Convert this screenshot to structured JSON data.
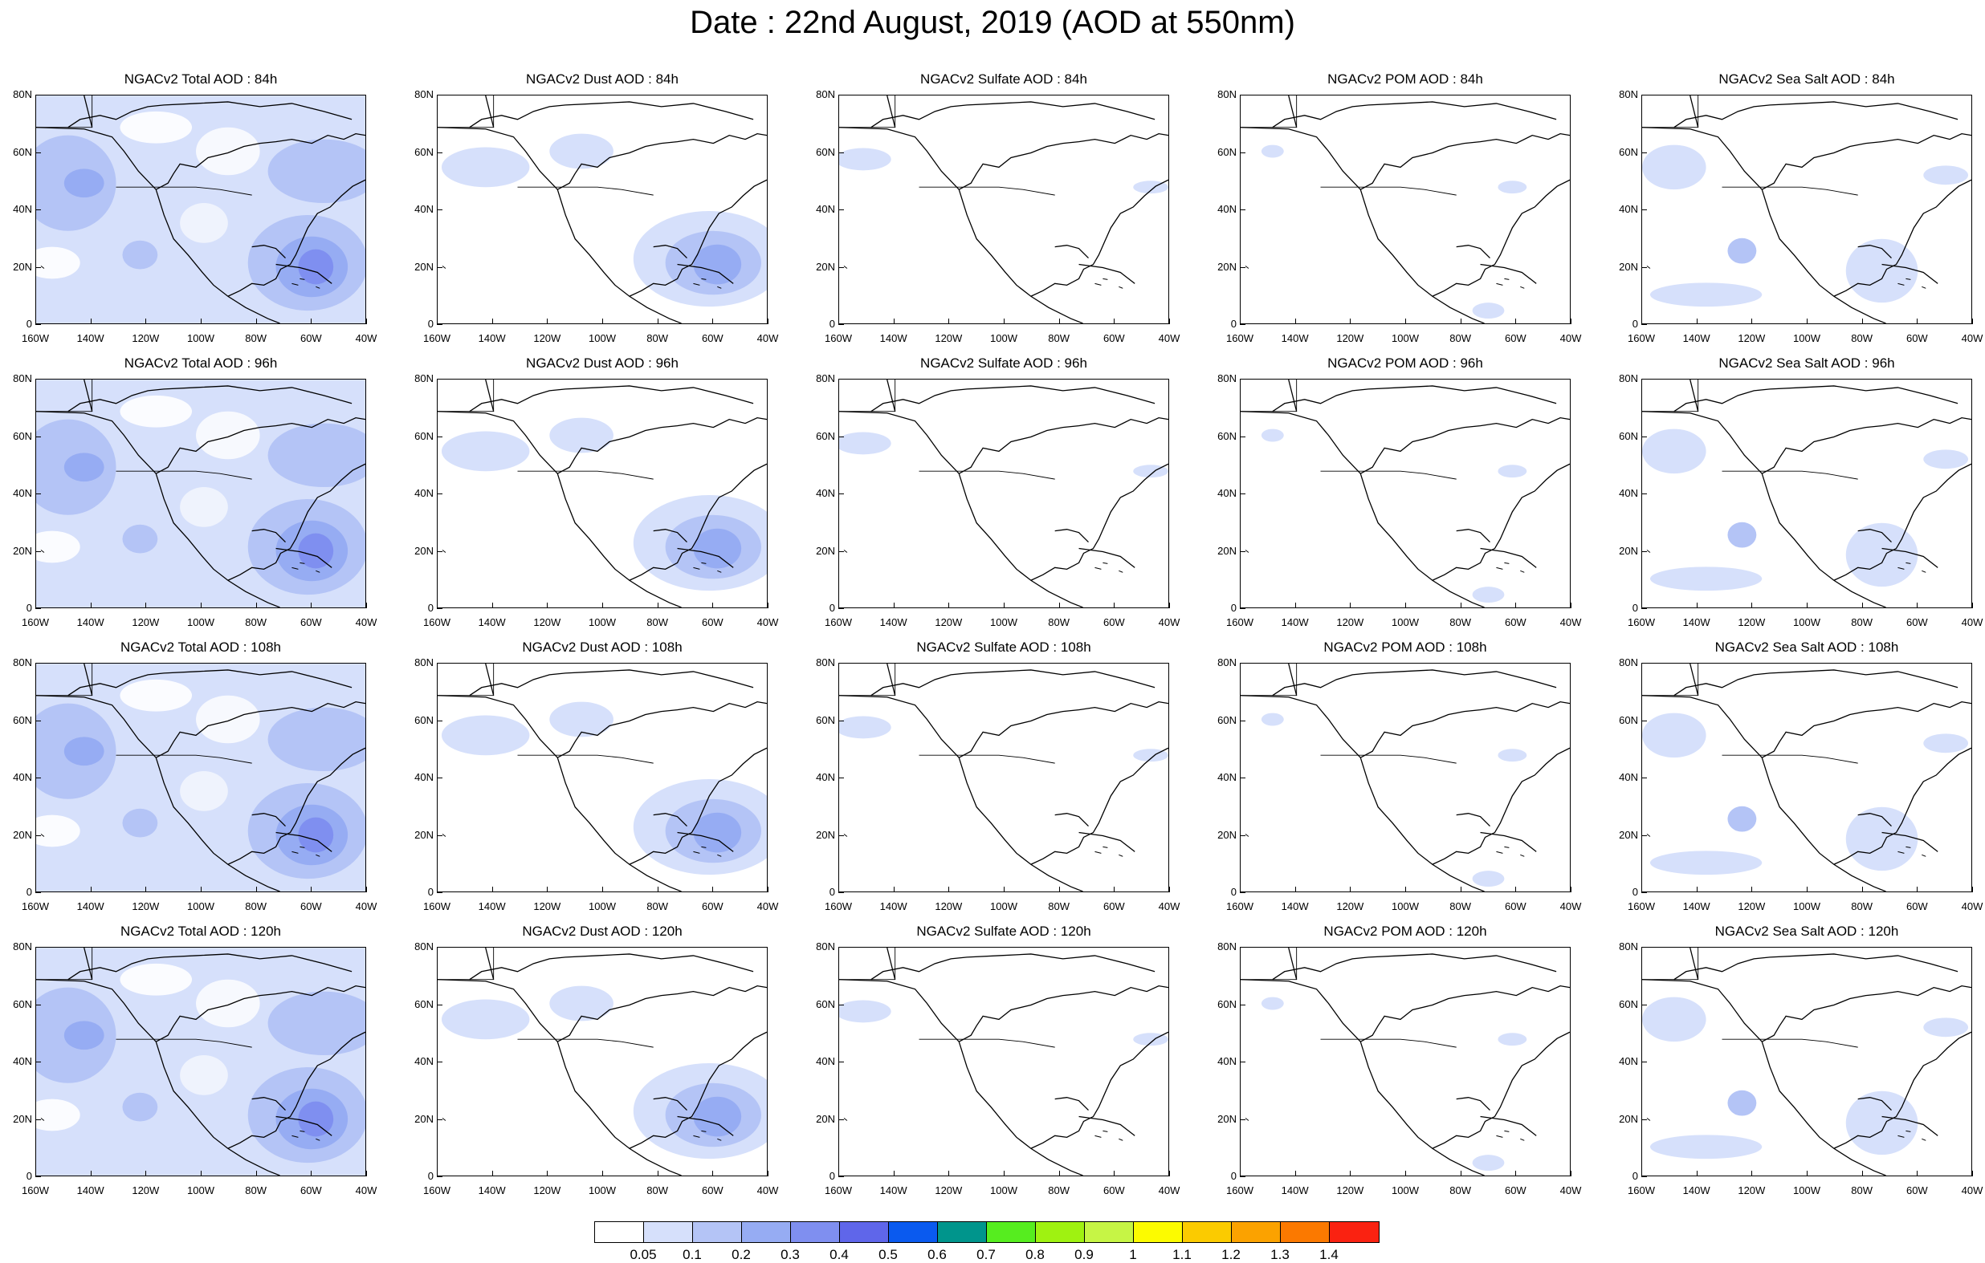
{
  "title": "Date : 22nd August, 2019 (AOD at 550nm)",
  "rows": [
    {
      "hour": "84h",
      "titles": [
        "NGACv2 Total AOD : 84h",
        "NGACv2 Dust AOD : 84h",
        "NGACv2 Sulfate AOD : 84h",
        "NGACv2 POM AOD : 84h",
        "NGACv2 Sea Salt AOD : 84h"
      ]
    },
    {
      "hour": "96h",
      "titles": [
        "NGACv2 Total AOD : 96h",
        "NGACv2 Dust AOD : 96h",
        "NGACv2 Sulfate AOD : 96h",
        "NGACv2 POM AOD : 96h",
        "NGACv2 Sea Salt AOD : 96h"
      ]
    },
    {
      "hour": "108h",
      "titles": [
        "NGACv2 Total AOD : 108h",
        "NGACv2 Dust AOD : 108h",
        "NGACv2 Sulfate AOD : 108h",
        "NGACv2 POM AOD : 108h",
        "NGACv2 Sea Salt AOD : 108h"
      ]
    },
    {
      "hour": "120h",
      "titles": [
        "NGACv2 Total AOD : 120h",
        "NGACv2 Dust AOD : 120h",
        "NGACv2 Sulfate AOD : 120h",
        "NGACv2 POM AOD : 120h",
        "NGACv2 Sea Salt  AOD : 120h"
      ]
    }
  ],
  "lat_labels": [
    "80N",
    "60N",
    "40N",
    "20N",
    "0"
  ],
  "lon_labels": [
    "160W",
    "140W",
    "120W",
    "100W",
    "80W",
    "60W",
    "40W"
  ],
  "colorbar": {
    "colors": [
      "#ffffff",
      "#d6e0fb",
      "#b4c4f6",
      "#96acf3",
      "#7f8ff0",
      "#5f66ea",
      "#0a5aef",
      "#00958c",
      "#56ed1f",
      "#9ff211",
      "#c6f545",
      "#fcfb00",
      "#fbcb00",
      "#fba200",
      "#fb7900",
      "#fa2211"
    ],
    "labels": [
      "0.05",
      "0.1",
      "0.2",
      "0.3",
      "0.4",
      "0.5",
      "0.6",
      "0.7",
      "0.8",
      "0.9",
      "1",
      "1.1",
      "1.2",
      "1.3",
      "1.4"
    ]
  }
}
